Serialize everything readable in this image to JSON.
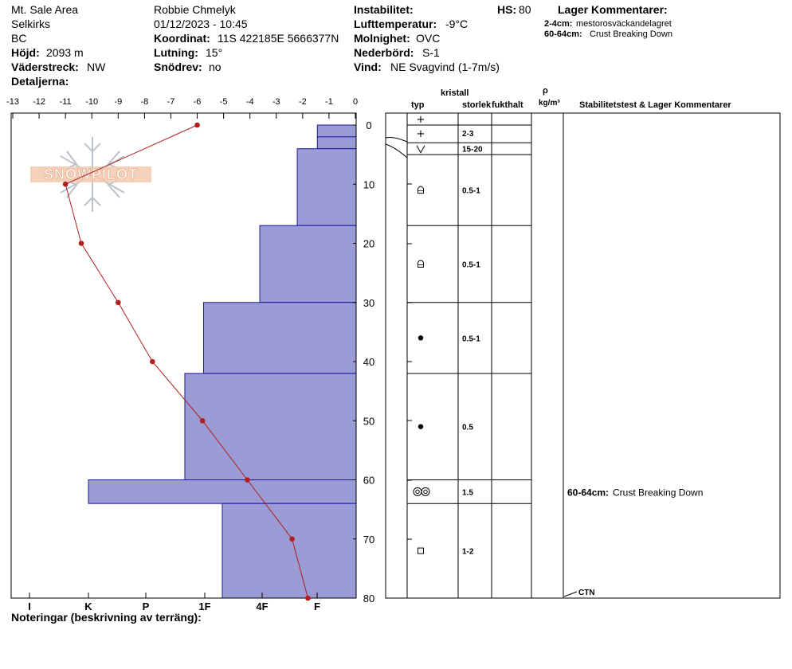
{
  "header": {
    "location": "Mt. Sale Area",
    "range": "Selkirks",
    "province": "BC",
    "elevation_label": "Höjd:",
    "elevation_value": "2093 m",
    "aspect_label": "Väderstreck:",
    "aspect_value": "NW",
    "details_label": "Detaljerna:",
    "observer": "Robbie Chmelyk",
    "datetime": "01/12/2023 - 10:45",
    "coord_label": "Koordinat:",
    "coord_value": "11S 422185E 5666377N",
    "slope_label": "Lutning:",
    "slope_value": "15°",
    "drift_label": "Snödrev:",
    "drift_value": "no",
    "instability_label": "Instabilitet:",
    "airtemp_label": "Lufttemperatur:",
    "airtemp_value": "-9°C",
    "sky_label": "Molnighet:",
    "sky_value": "OVC",
    "precip_label": "Nederbörd:",
    "precip_value": "S-1",
    "wind_label": "Vind:",
    "wind_value": "NE Svagvind (1-7m/s)",
    "hs_label": "HS:",
    "hs_value": "80",
    "layer_comments_title": "Lager Kommentarer:",
    "layer_comments": [
      {
        "range": "2-4cm:",
        "text": "mestorosväckandelagret"
      },
      {
        "range": "60-64cm:",
        "text": "Crust Breaking Down"
      }
    ],
    "notes_label": "Noteringar (beskrivning av terräng):"
  },
  "watermark": {
    "text": "SNOWPILOT",
    "icon": "snowflake-icon"
  },
  "table_headers": {
    "crystal": "kristall",
    "type": "typ",
    "size": "storlek",
    "moisture": "fukthalt",
    "rho": "ρ",
    "density_unit": "kg/m³",
    "stability": "Stabilitetstest & Lager Kommentarer"
  },
  "colors": {
    "hardness_fill": "#9b9bd6",
    "hardness_stroke": "#1a1a99",
    "temp_line": "#b01e1e"
  },
  "chart_data": {
    "type": "snow-profile",
    "depth_axis": {
      "ticks": [
        "0",
        "10",
        "20",
        "30",
        "40",
        "50",
        "60",
        "70",
        "80"
      ],
      "range": [
        0,
        80
      ]
    },
    "temperature_axis": {
      "ticks": [
        "-13",
        "-12",
        "-11",
        "-10",
        "-9",
        "-8",
        "-7",
        "-6",
        "-5",
        "-4",
        "-3",
        "-2",
        "-1",
        "0"
      ],
      "range": [
        -13,
        0
      ]
    },
    "hardness_axis": {
      "ticks": [
        "I",
        "K",
        "P",
        "1F",
        "4F",
        "F"
      ]
    },
    "temperature_profile": [
      {
        "depth": 0,
        "temp": -6.0
      },
      {
        "depth": 10,
        "temp": -11.0
      },
      {
        "depth": 20,
        "temp": -10.4
      },
      {
        "depth": 30,
        "temp": -9.0
      },
      {
        "depth": 40,
        "temp": -7.7
      },
      {
        "depth": 50,
        "temp": -5.8
      },
      {
        "depth": 60,
        "temp": -4.1
      },
      {
        "depth": 70,
        "temp": -2.4
      },
      {
        "depth": 80,
        "temp": -1.8
      }
    ],
    "hardness_layers": [
      {
        "top": 0,
        "bottom": 2,
        "hardness": 1.45
      },
      {
        "top": 2,
        "bottom": 4,
        "hardness": 1.45
      },
      {
        "top": 4,
        "bottom": 17,
        "hardness": 2.2
      },
      {
        "top": 17,
        "bottom": 30,
        "hardness": 3.6
      },
      {
        "top": 30,
        "bottom": 42,
        "hardness": 5.7
      },
      {
        "top": 42,
        "bottom": 60,
        "hardness": 6.4
      },
      {
        "top": 60,
        "bottom": 64,
        "hardness": 10.0
      },
      {
        "top": 64,
        "bottom": 80,
        "hardness": 5.0
      }
    ],
    "crystals": [
      {
        "top": 0,
        "bottom": 2,
        "symbol": "+",
        "size": ""
      },
      {
        "top": 2,
        "bottom": 3,
        "symbol": "+",
        "size": "2-3"
      },
      {
        "top": 3,
        "bottom": 5,
        "symbol": "V",
        "size": "15-20"
      },
      {
        "top": 5,
        "bottom": 17,
        "symbol": "rounding-faceted",
        "size": "0.5-1"
      },
      {
        "top": 17,
        "bottom": 30,
        "symbol": "rounding-faceted",
        "size": "0.5-1"
      },
      {
        "top": 30,
        "bottom": 42,
        "symbol": "dot",
        "size": "0.5-1"
      },
      {
        "top": 42,
        "bottom": 60,
        "symbol": "dot",
        "size": "0.5"
      },
      {
        "top": 60,
        "bottom": 64,
        "symbol": "melt-freeze",
        "size": "1.5"
      },
      {
        "top": 64,
        "bottom": 80,
        "symbol": "square",
        "size": "1-2"
      }
    ],
    "stability_comments": [
      {
        "depth": 62,
        "range": "60-64cm:",
        "text": "Crust Breaking Down"
      }
    ],
    "tests": [
      {
        "depth": 80,
        "result": "CTN"
      }
    ]
  }
}
